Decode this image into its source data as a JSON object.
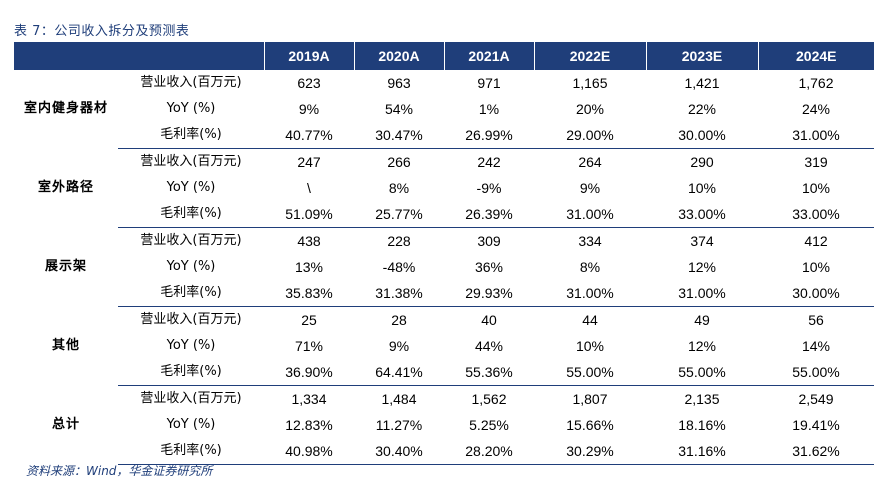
{
  "caption": "表 7：公司收入拆分及预测表",
  "source": "资料来源：Wind，华金证券研究所",
  "header": [
    "",
    "",
    "2019A",
    "2020A",
    "2021A",
    "2022E",
    "2023E",
    "2024E"
  ],
  "segments": [
    {
      "name": "室内健身器材",
      "rows": [
        {
          "metric": "营业收入(百万元)",
          "values": [
            "623",
            "963",
            "971",
            "1,165",
            "1,421",
            "1,762"
          ]
        },
        {
          "metric": "YoY (%)",
          "values": [
            "9%",
            "54%",
            "1%",
            "20%",
            "22%",
            "24%"
          ]
        },
        {
          "metric": "毛利率(%)",
          "values": [
            "40.77%",
            "30.47%",
            "26.99%",
            "29.00%",
            "30.00%",
            "31.00%"
          ]
        }
      ]
    },
    {
      "name": "室外路径",
      "rows": [
        {
          "metric": "营业收入(百万元)",
          "values": [
            "247",
            "266",
            "242",
            "264",
            "290",
            "319"
          ]
        },
        {
          "metric": "YoY (%)",
          "values": [
            "\\",
            "8%",
            "-9%",
            "9%",
            "10%",
            "10%"
          ]
        },
        {
          "metric": "毛利率(%)",
          "values": [
            "51.09%",
            "25.77%",
            "26.39%",
            "31.00%",
            "33.00%",
            "33.00%"
          ]
        }
      ]
    },
    {
      "name": "展示架",
      "rows": [
        {
          "metric": "营业收入(百万元)",
          "values": [
            "438",
            "228",
            "309",
            "334",
            "374",
            "412"
          ]
        },
        {
          "metric": "YoY (%)",
          "values": [
            "13%",
            "-48%",
            "36%",
            "8%",
            "12%",
            "10%"
          ]
        },
        {
          "metric": "毛利率(%)",
          "values": [
            "35.83%",
            "31.38%",
            "29.93%",
            "31.00%",
            "31.00%",
            "30.00%"
          ]
        }
      ]
    },
    {
      "name": "其他",
      "rows": [
        {
          "metric": "营业收入(百万元)",
          "values": [
            "25",
            "28",
            "40",
            "44",
            "49",
            "56"
          ]
        },
        {
          "metric": "YoY (%)",
          "values": [
            "71%",
            "9%",
            "44%",
            "10%",
            "12%",
            "14%"
          ]
        },
        {
          "metric": "毛利率(%)",
          "values": [
            "36.90%",
            "64.41%",
            "55.36%",
            "55.00%",
            "55.00%",
            "55.00%"
          ]
        }
      ]
    },
    {
      "name": "总计",
      "rows": [
        {
          "metric": "营业收入(百万元)",
          "values": [
            "1,334",
            "1,484",
            "1,562",
            "1,807",
            "2,135",
            "2,549"
          ]
        },
        {
          "metric": "YoY (%)",
          "values": [
            "12.83%",
            "11.27%",
            "5.25%",
            "15.66%",
            "18.16%",
            "19.41%"
          ]
        },
        {
          "metric": "毛利率(%)",
          "values": [
            "40.98%",
            "30.40%",
            "28.20%",
            "30.29%",
            "31.16%",
            "31.62%"
          ]
        }
      ]
    }
  ]
}
